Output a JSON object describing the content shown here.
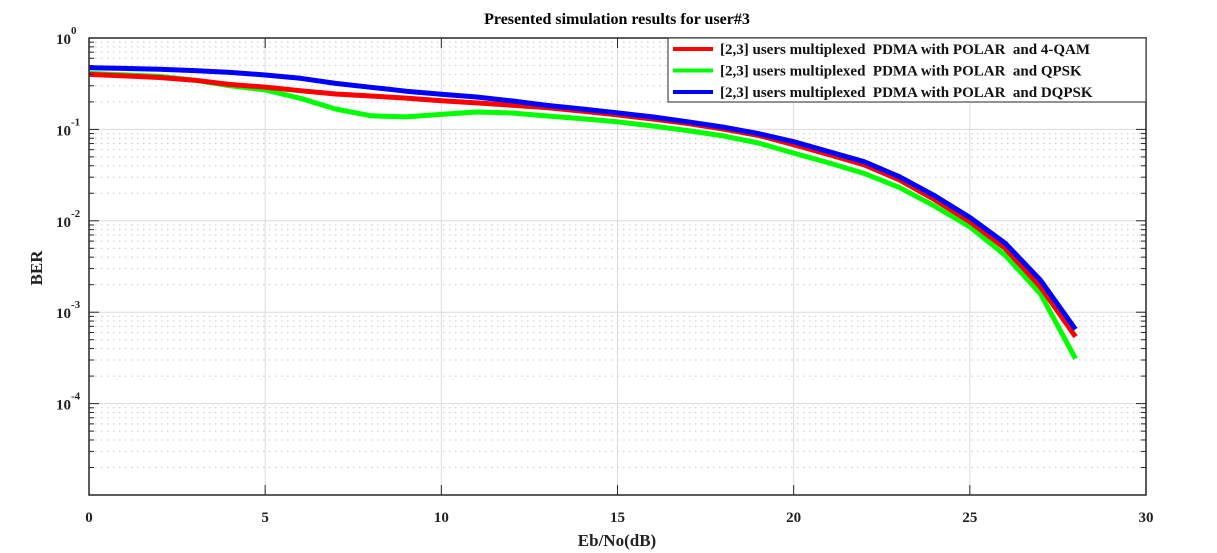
{
  "chart_data": {
    "type": "line",
    "title": "Presented simulation results for user#3",
    "xlabel": "Eb/No(dB)",
    "ylabel": "BER",
    "xlim": [
      0,
      30
    ],
    "ylim": [
      1e-05,
      1
    ],
    "yscale": "log",
    "grid": true,
    "legend_position": "top-right",
    "x_ticks": [
      "0",
      "5",
      "10",
      "15",
      "20",
      "25",
      "30"
    ],
    "x_tick_values": [
      0,
      5,
      10,
      15,
      20,
      25,
      30
    ],
    "y_ticks": [
      {
        "base": "10",
        "exp": "0",
        "value": 1
      },
      {
        "base": "10",
        "exp": "-1",
        "value": 0.1
      },
      {
        "base": "10",
        "exp": "-2",
        "value": 0.01
      },
      {
        "base": "10",
        "exp": "-3",
        "value": 0.001
      },
      {
        "base": "10",
        "exp": "-4",
        "value": 0.0001
      }
    ],
    "x": [
      0,
      1,
      2,
      3,
      4,
      5,
      6,
      7,
      8,
      9,
      10,
      11,
      12,
      13,
      14,
      15,
      16,
      17,
      18,
      19,
      20,
      21,
      22,
      23,
      24,
      25,
      26,
      27,
      28
    ],
    "series": [
      {
        "name": "[2,3] users multiplexed  PDMA with POLAR  and 4-QAM",
        "color": "#ff0000",
        "values": [
          0.4,
          0.385,
          0.37,
          0.345,
          0.31,
          0.29,
          0.265,
          0.244,
          0.232,
          0.22,
          0.206,
          0.195,
          0.184,
          0.173,
          0.158,
          0.144,
          0.13,
          0.116,
          0.101,
          0.086,
          0.068,
          0.053,
          0.041,
          0.028,
          0.017,
          0.0098,
          0.005,
          0.0019,
          0.00054
        ]
      },
      {
        "name": "[2,3] users multiplexed  PDMA with POLAR  and QPSK",
        "color": "#00ff00",
        "values": [
          0.41,
          0.395,
          0.38,
          0.345,
          0.3,
          0.27,
          0.219,
          0.167,
          0.141,
          0.137,
          0.146,
          0.155,
          0.151,
          0.14,
          0.131,
          0.121,
          0.109,
          0.097,
          0.085,
          0.071,
          0.055,
          0.043,
          0.033,
          0.0232,
          0.0145,
          0.0086,
          0.0042,
          0.0016,
          0.00031
        ]
      },
      {
        "name": "[2,3] users multiplexed  PDMA with POLAR  and DQPSK",
        "color": "#0000ff",
        "values": [
          0.473,
          0.465,
          0.454,
          0.44,
          0.42,
          0.394,
          0.362,
          0.319,
          0.289,
          0.262,
          0.242,
          0.226,
          0.205,
          0.183,
          0.167,
          0.152,
          0.137,
          0.121,
          0.106,
          0.09,
          0.0734,
          0.057,
          0.0443,
          0.0304,
          0.0188,
          0.0109,
          0.0057,
          0.00225,
          0.00065
        ]
      }
    ]
  }
}
